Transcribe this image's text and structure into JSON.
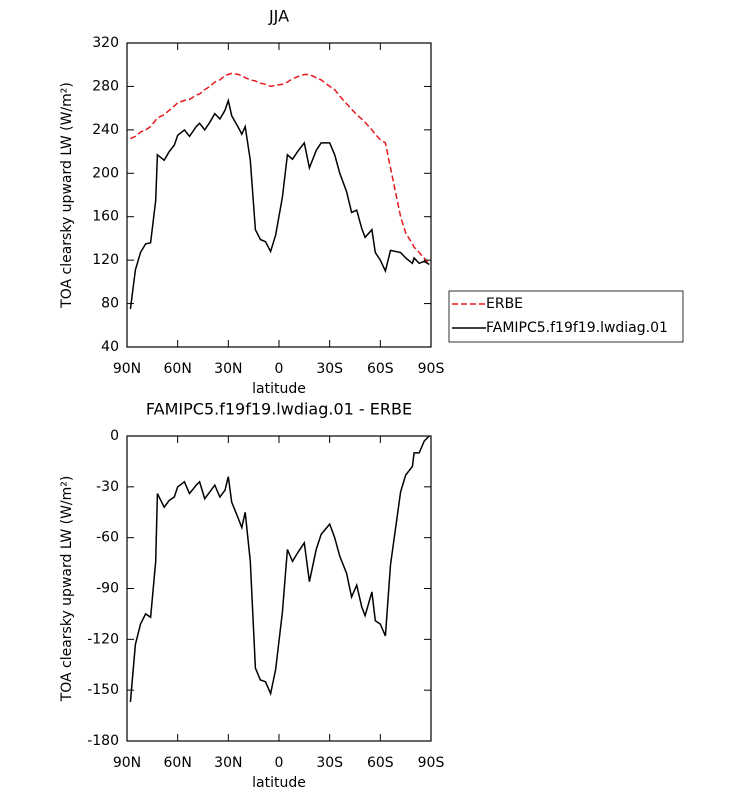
{
  "chart_data": [
    {
      "type": "line",
      "title": "JJA",
      "xlabel": "latitude",
      "ylabel": "TOA clearsky upward LW (W/m²)",
      "x": [
        88,
        85,
        82,
        79,
        76,
        73,
        72,
        68,
        65,
        62,
        60,
        56,
        53,
        49,
        47,
        44,
        41,
        38,
        35,
        32,
        30,
        28,
        24,
        22,
        20,
        17,
        14,
        11,
        8,
        5,
        2,
        -2,
        -5,
        -8,
        -11,
        -15,
        -18,
        -22,
        -25,
        -30,
        -33,
        -36,
        -40,
        -43,
        -46,
        -49,
        -51,
        -55,
        -57,
        -60,
        -63,
        -66,
        -72,
        -75,
        -79,
        -80,
        -83,
        -86,
        -89
      ],
      "xlim": [
        90,
        -90
      ],
      "xticks": [
        {
          "value": 90,
          "label": "90N"
        },
        {
          "value": 60,
          "label": "60N"
        },
        {
          "value": 30,
          "label": "30N"
        },
        0,
        {
          "value": -30,
          "label": "30S"
        },
        {
          "value": -60,
          "label": "60S"
        },
        {
          "value": -90,
          "label": "90S"
        }
      ],
      "ylim": [
        40,
        320
      ],
      "yticks": [
        40,
        80,
        120,
        160,
        200,
        240,
        280,
        320
      ],
      "legend": "right",
      "series": [
        {
          "name": "ERBE",
          "color": "#e41a1c",
          "line_style": "dashed",
          "values": [
            232,
            234,
            238,
            240,
            243,
            249,
            251,
            254,
            258,
            262,
            265,
            267,
            268,
            272,
            273,
            277,
            280,
            284,
            286,
            290,
            291,
            292,
            291,
            290,
            288,
            286,
            285,
            283,
            282,
            280,
            281,
            282,
            284,
            287,
            289,
            291,
            291,
            288,
            286,
            280,
            277,
            271,
            264,
            259,
            254,
            250,
            247,
            240,
            236,
            231,
            228,
            205,
            160,
            145,
            135,
            132,
            127,
            122,
            116
          ]
        },
        {
          "name": "FAMIPC5.f19f19.lwdiag.01",
          "color": "#000000",
          "line_style": "solid",
          "values": [
            75,
            111,
            127,
            135,
            136,
            175,
            217,
            212,
            220,
            226,
            235,
            240,
            234,
            243,
            246,
            240,
            247,
            255,
            250,
            258,
            267,
            253,
            242,
            236,
            243,
            212,
            148,
            139,
            137,
            128,
            143,
            178,
            217,
            213,
            220,
            228,
            205,
            221,
            228,
            228,
            217,
            200,
            183,
            164,
            166,
            149,
            141,
            148,
            127,
            120,
            110,
            129,
            127,
            122,
            117,
            122,
            117,
            119,
            116
          ]
        }
      ]
    },
    {
      "type": "line",
      "title": "FAMIPC5.f19f19.lwdiag.01 - ERBE",
      "xlabel": "latitude",
      "ylabel": "TOA clearsky upward LW (W/m²)",
      "x": [
        88,
        85,
        82,
        79,
        76,
        73,
        72,
        68,
        65,
        62,
        60,
        56,
        53,
        49,
        47,
        44,
        41,
        38,
        35,
        32,
        30,
        28,
        24,
        22,
        20,
        17,
        14,
        11,
        8,
        5,
        2,
        -2,
        -5,
        -8,
        -11,
        -15,
        -18,
        -22,
        -25,
        -30,
        -33,
        -36,
        -40,
        -43,
        -46,
        -49,
        -51,
        -55,
        -57,
        -60,
        -63,
        -66,
        -72,
        -75,
        -79,
        -80,
        -83,
        -86,
        -89
      ],
      "xlim": [
        90,
        -90
      ],
      "xticks": [
        {
          "value": 90,
          "label": "90N"
        },
        {
          "value": 60,
          "label": "60N"
        },
        {
          "value": 30,
          "label": "30N"
        },
        0,
        {
          "value": -30,
          "label": "30S"
        },
        {
          "value": -60,
          "label": "60S"
        },
        {
          "value": -90,
          "label": "90S"
        }
      ],
      "ylim": [
        -180,
        0
      ],
      "yticks": [
        -180,
        -150,
        -120,
        -90,
        -60,
        -30,
        0
      ],
      "series": [
        {
          "color": "#000000",
          "line_style": "solid",
          "values": [
            -157,
            -123,
            -111,
            -105,
            -107,
            -74,
            -34,
            -42,
            -38,
            -36,
            -30,
            -27,
            -34,
            -29,
            -27,
            -37,
            -33,
            -29,
            -36,
            -32,
            -24,
            -39,
            -49,
            -54,
            -45,
            -74,
            -137,
            -144,
            -145,
            -152,
            -138,
            -104,
            -67,
            -74,
            -69,
            -63,
            -86,
            -67,
            -58,
            -52,
            -60,
            -71,
            -81,
            -95,
            -88,
            -101,
            -106,
            -92,
            -109,
            -111,
            -118,
            -76,
            -33,
            -23,
            -18,
            -10,
            -10,
            -3,
            0
          ]
        }
      ]
    }
  ]
}
